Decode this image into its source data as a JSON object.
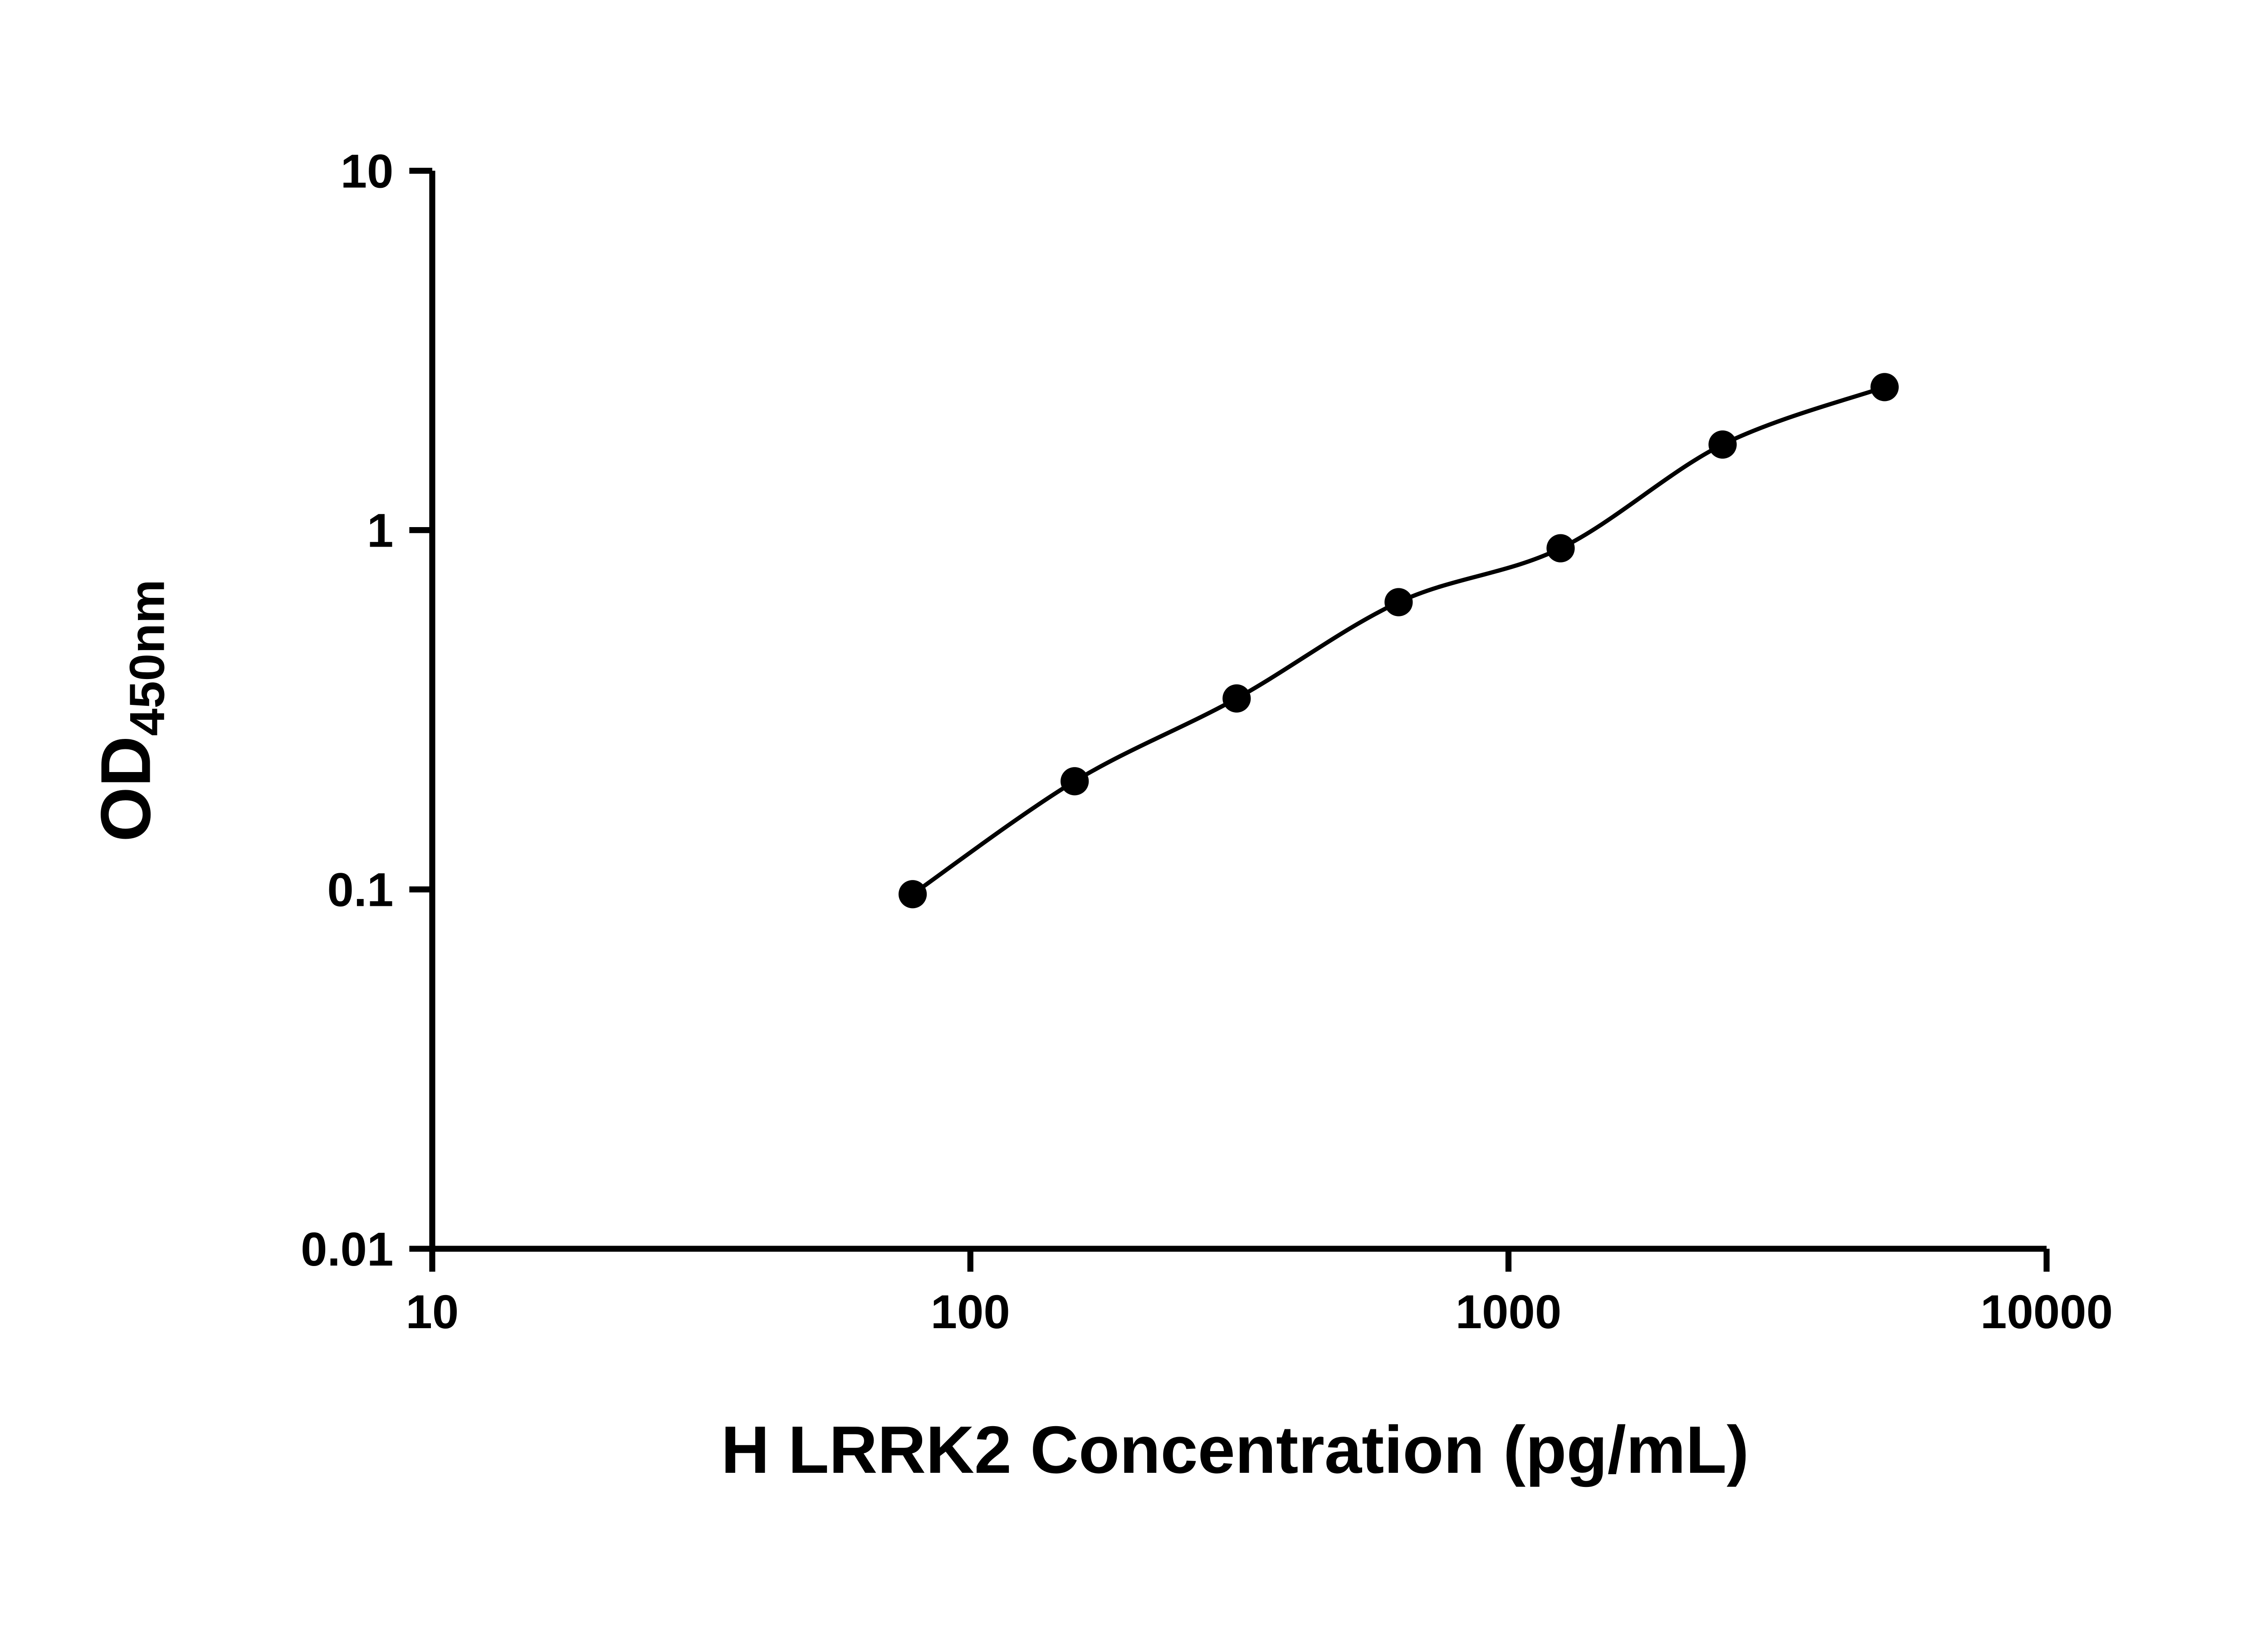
{
  "chart_data": {
    "type": "scatter-line",
    "description": "ELISA standard curve, log-log axes, black fitted curve through black round markers",
    "xlabel": "H LRRK2 Concentration (pg/mL)",
    "ylabel_main": "OD",
    "ylabel_sub": "450nm",
    "x_scale": "log",
    "y_scale": "log",
    "xlim": [
      10,
      10000
    ],
    "ylim": [
      0.01,
      10
    ],
    "x_ticks": [
      10,
      100,
      1000,
      10000
    ],
    "x_tick_labels": [
      "10",
      "100",
      "1000",
      "10000"
    ],
    "y_ticks": [
      0.01,
      0.1,
      1,
      10
    ],
    "y_tick_labels": [
      "0.01",
      "0.1",
      "1",
      "10"
    ],
    "points": [
      {
        "x": 78.125,
        "y": 0.097
      },
      {
        "x": 156.25,
        "y": 0.2
      },
      {
        "x": 312.5,
        "y": 0.34
      },
      {
        "x": 625,
        "y": 0.63
      },
      {
        "x": 1250,
        "y": 0.89
      },
      {
        "x": 2500,
        "y": 1.73
      },
      {
        "x": 5000,
        "y": 2.5
      }
    ],
    "grid": false,
    "legend": null,
    "marker_color": "#000000",
    "line_color": "#000000",
    "axis_color": "#000000",
    "background": "#ffffff"
  }
}
